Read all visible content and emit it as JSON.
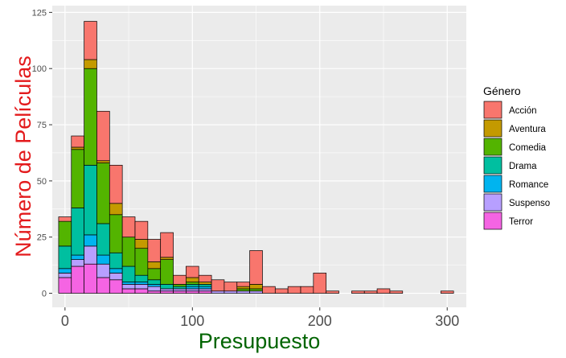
{
  "chart_data": {
    "type": "bar",
    "stacked": true,
    "title": "",
    "xlabel": "Presupuesto",
    "ylabel": "Número de Películas",
    "xlabel_color": "#006400",
    "ylabel_color": "#e31a1c",
    "xlim": [
      -10,
      315
    ],
    "ylim": [
      -6.25,
      128
    ],
    "bin_width": 10,
    "x_ticks": [
      0,
      100,
      200,
      300
    ],
    "x_tick_labels": [
      "0",
      "100",
      "200",
      "300"
    ],
    "y_ticks": [
      0,
      25,
      50,
      75,
      100,
      125
    ],
    "y_tick_labels": [
      "0",
      "25",
      "50",
      "75",
      "100",
      "125"
    ],
    "grid": true,
    "legend_position": "right",
    "legend_title": "Género",
    "categories": [
      0,
      10,
      20,
      30,
      40,
      50,
      60,
      70,
      80,
      90,
      100,
      110,
      120,
      130,
      140,
      150,
      160,
      170,
      180,
      190,
      200,
      210,
      220,
      230,
      240,
      250,
      260,
      270,
      280,
      290,
      300
    ],
    "series": [
      {
        "name": "Terror",
        "color": "#F564E3",
        "values": [
          7,
          12,
          13,
          7,
          6,
          2,
          2,
          1,
          1,
          1,
          1,
          1,
          0,
          0,
          0,
          0,
          0,
          0,
          0,
          0,
          0,
          0,
          0,
          0,
          0,
          0,
          0,
          0,
          0,
          0,
          0
        ]
      },
      {
        "name": "Suspenso",
        "color": "#B79FFF",
        "values": [
          2,
          3,
          8,
          6,
          3,
          2,
          2,
          2,
          1,
          1,
          1,
          1,
          1,
          1,
          1,
          1,
          0,
          0,
          0,
          0,
          0,
          0,
          0,
          0,
          0,
          0,
          0,
          0,
          0,
          0,
          0
        ]
      },
      {
        "name": "Romance",
        "color": "#00B4EF",
        "values": [
          2,
          2,
          5,
          4,
          2,
          1,
          1,
          1,
          0,
          0,
          1,
          1,
          0,
          0,
          0,
          0,
          0,
          0,
          0,
          0,
          0,
          0,
          0,
          0,
          0,
          0,
          0,
          0,
          0,
          0,
          0
        ]
      },
      {
        "name": "Drama",
        "color": "#00BFA0",
        "values": [
          10,
          21,
          31,
          14,
          7,
          7,
          3,
          2,
          2,
          1,
          1,
          1,
          0,
          0,
          0,
          0,
          0,
          0,
          0,
          0,
          0,
          0,
          0,
          0,
          0,
          0,
          0,
          0,
          0,
          0,
          0
        ]
      },
      {
        "name": "Comedia",
        "color": "#53B400",
        "values": [
          11,
          26,
          43,
          27,
          17,
          13,
          12,
          5,
          11,
          1,
          1,
          0,
          0,
          0,
          1,
          1,
          0,
          0,
          0,
          0,
          0,
          0,
          0,
          0,
          0,
          0,
          0,
          0,
          0,
          0,
          0
        ]
      },
      {
        "name": "Aventura",
        "color": "#C49A00",
        "values": [
          0,
          1,
          4,
          1,
          5,
          0,
          4,
          3,
          1,
          0,
          2,
          1,
          0,
          0,
          1,
          2,
          0,
          0,
          0,
          0,
          0,
          0,
          0,
          0,
          0,
          0,
          0,
          0,
          0,
          0,
          0
        ]
      },
      {
        "name": "Acción",
        "color": "#F8766D",
        "values": [
          2,
          5,
          17,
          22,
          17,
          9,
          8,
          10,
          11,
          4,
          5,
          3,
          5,
          4,
          2,
          15,
          3,
          2,
          3,
          3,
          9,
          1,
          0,
          1,
          1,
          2,
          1,
          0,
          0,
          0,
          1
        ]
      }
    ],
    "legend_order": [
      "Acción",
      "Aventura",
      "Comedia",
      "Drama",
      "Romance",
      "Suspenso",
      "Terror"
    ]
  }
}
